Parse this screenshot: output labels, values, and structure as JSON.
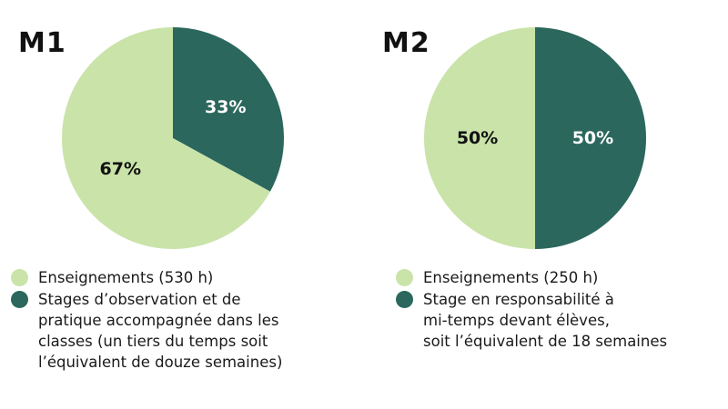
{
  "colors": {
    "light": "#c9e3a9",
    "dark": "#2b675d",
    "dark_text": "#ffffff",
    "light_text": "#111111"
  },
  "chart_data": [
    {
      "type": "pie",
      "title": "M1",
      "slices": [
        {
          "label": "Stages d’observation et de pratique accompagnée dans les classes (un tiers du temps soit l’équivalent de douze semaines)",
          "value": 33,
          "value_label": "33%",
          "color": "#2b675d"
        },
        {
          "label": "Enseignements (530 h)",
          "value": 67,
          "value_label": "67%",
          "color": "#c9e3a9"
        }
      ],
      "legend_position": "bottom-left",
      "legend": [
        {
          "color": "#c9e3a9",
          "lines": [
            "Enseignements (530 h)"
          ]
        },
        {
          "color": "#2b675d",
          "lines": [
            "Stages d’observation et de",
            "pratique accompagnée dans les",
            "classes (un tiers du temps soit",
            "l’équivalent de douze semaines)"
          ]
        }
      ]
    },
    {
      "type": "pie",
      "title": "M2",
      "slices": [
        {
          "label": "Stage en responsabilité à mi-temps devant élèves, soit l’équivalent de 18 semaines",
          "value": 50,
          "value_label": "50%",
          "color": "#2b675d"
        },
        {
          "label": "Enseignements (250 h)",
          "value": 50,
          "value_label": "50%",
          "color": "#c9e3a9"
        }
      ],
      "legend_position": "bottom-left",
      "legend": [
        {
          "color": "#c9e3a9",
          "lines": [
            "Enseignements (250 h)"
          ]
        },
        {
          "color": "#2b675d",
          "lines": [
            "Stage en responsabilité à",
            "mi-temps devant élèves,",
            "soit l’équivalent de 18 semaines"
          ]
        }
      ]
    }
  ]
}
